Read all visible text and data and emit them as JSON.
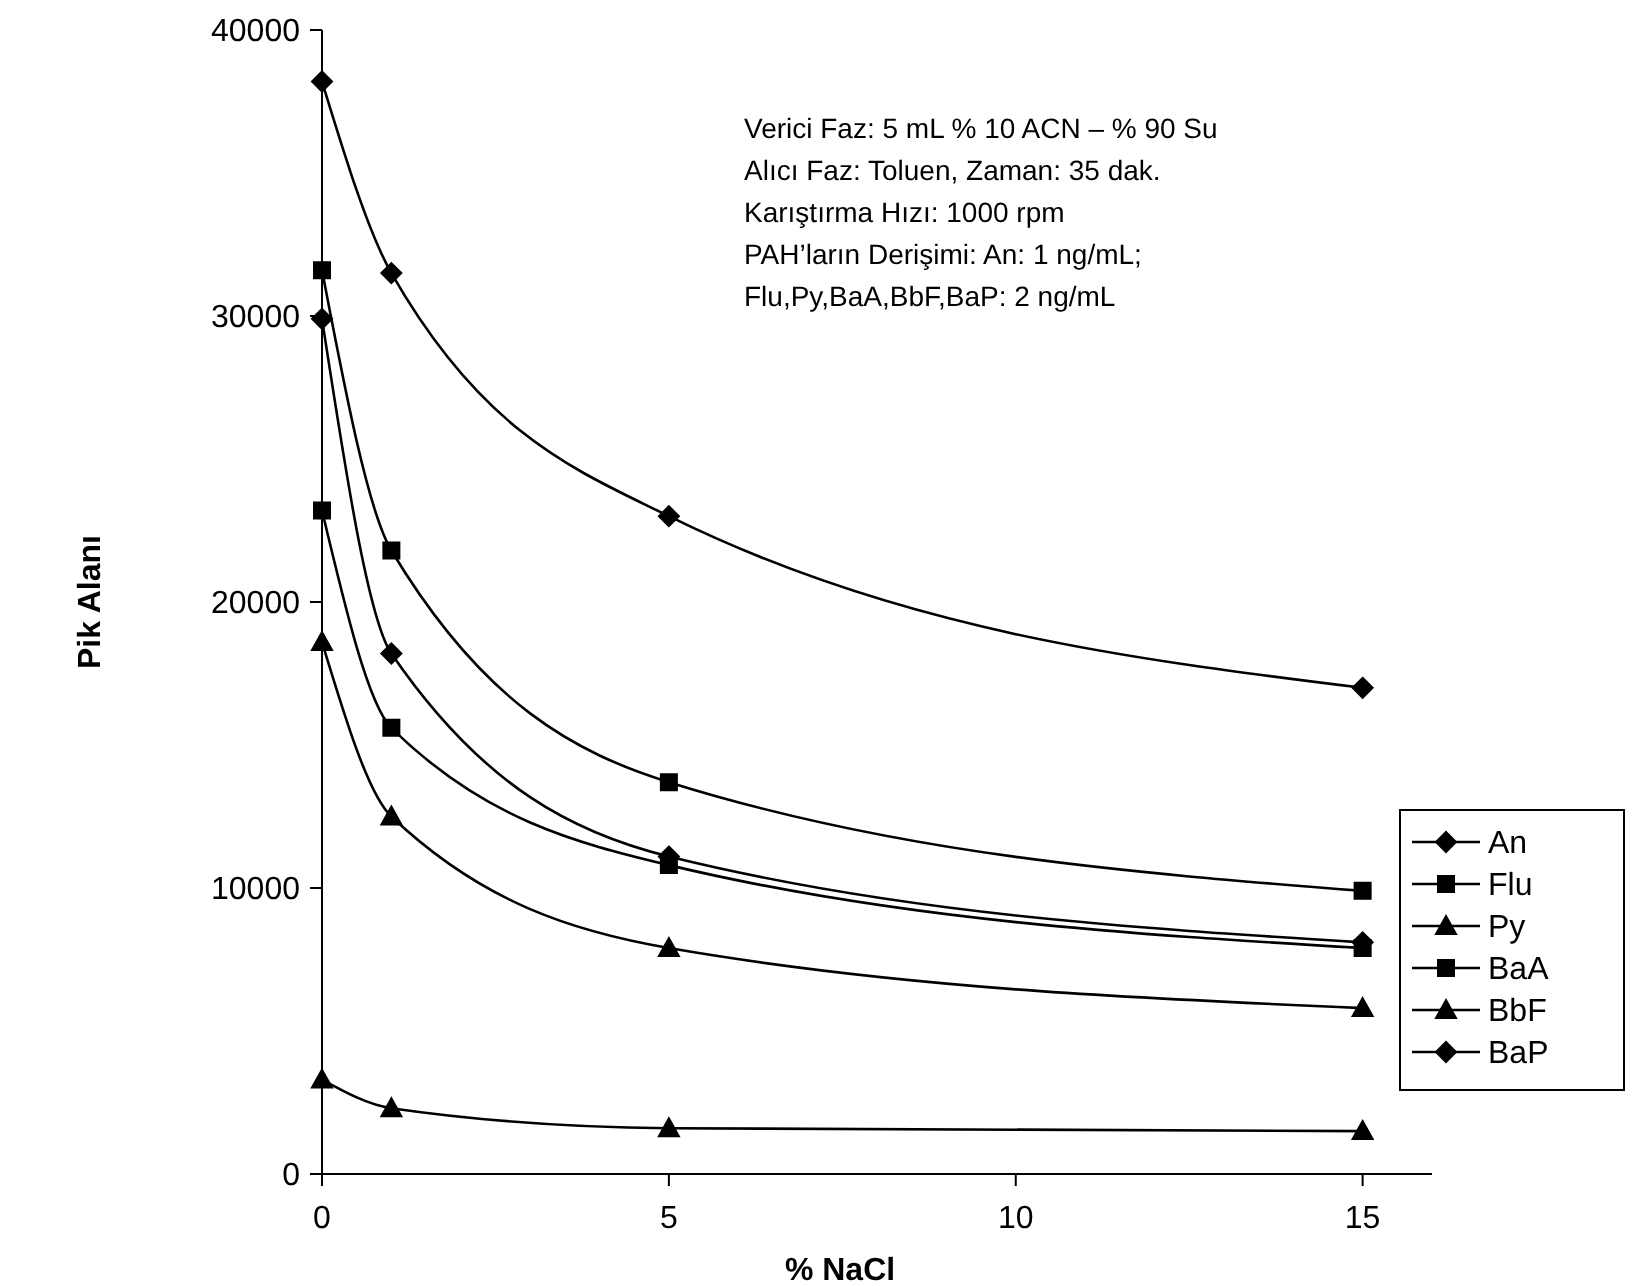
{
  "chart_data": {
    "type": "line",
    "xlabel": "% NaCl",
    "ylabel": "Pik Alanı",
    "x": [
      0,
      1,
      5,
      15
    ],
    "xlim": [
      0,
      16
    ],
    "xticks": [
      0,
      5,
      10,
      15
    ],
    "ylim": [
      0,
      40000
    ],
    "yticks": [
      0,
      10000,
      20000,
      30000,
      40000
    ],
    "grid": false,
    "legend": "right",
    "line_style": "solid",
    "series": [
      {
        "name": "An",
        "color": "#000000",
        "marker": "diamond",
        "values": [
          38200,
          31500,
          23000,
          17000
        ]
      },
      {
        "name": "Flu",
        "color": "#000000",
        "marker": "square",
        "values": [
          23200,
          15600,
          10800,
          7900
        ]
      },
      {
        "name": "Py",
        "color": "#000000",
        "marker": "triangle",
        "values": [
          3300,
          2300,
          1600,
          1500
        ]
      },
      {
        "name": "BaA",
        "color": "#000000",
        "marker": "square",
        "values": [
          31600,
          21800,
          13700,
          9900
        ]
      },
      {
        "name": "BbF",
        "color": "#000000",
        "marker": "triangle",
        "values": [
          18600,
          12500,
          7900,
          5800
        ]
      },
      {
        "name": "BaP",
        "color": "#000000",
        "marker": "diamond",
        "values": [
          29900,
          18200,
          11100,
          8100
        ]
      }
    ],
    "annotations": [
      "Verici Faz: 5 mL % 10 ACN – % 90 Su",
      "Alıcı Faz: Toluen, Zaman: 35 dak.",
      "Karıştırma Hızı: 1000 rpm",
      "PAH’ların Derişimi: An: 1 ng/mL;",
      "Flu,Py,BaA,BbF,BaP: 2 ng/mL"
    ]
  }
}
